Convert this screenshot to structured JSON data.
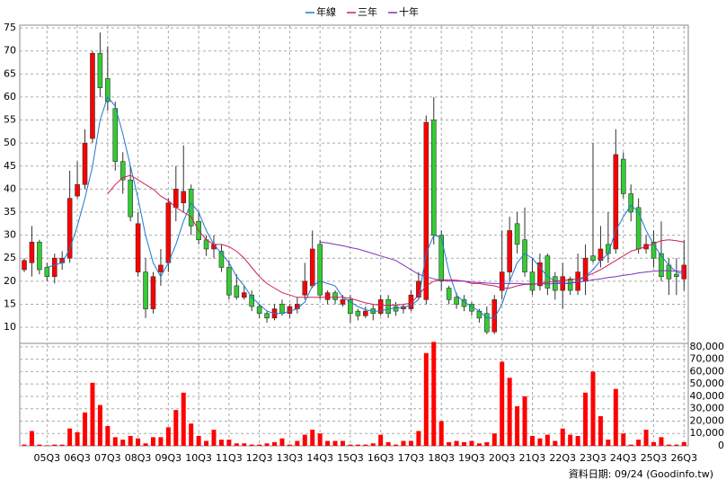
{
  "chart_data": {
    "type": "candlestick",
    "categories": [
      null,
      null,
      null,
      "05Q3",
      null,
      null,
      null,
      "06Q3",
      null,
      null,
      null,
      "07Q3",
      null,
      null,
      null,
      "08Q3",
      null,
      null,
      null,
      "09Q3",
      null,
      null,
      null,
      "10Q3",
      null,
      null,
      null,
      "11Q3",
      null,
      null,
      null,
      "12Q3",
      null,
      null,
      null,
      "13Q3",
      null,
      null,
      null,
      "14Q3",
      null,
      null,
      null,
      "15Q3",
      null,
      null,
      null,
      "16Q3",
      null,
      null,
      null,
      "17Q3",
      null,
      null,
      null,
      "18Q3",
      null,
      null,
      null,
      "19Q3",
      null,
      null,
      null,
      "20Q3",
      null,
      null,
      null,
      "21Q3",
      null,
      null,
      null,
      "22Q3",
      null,
      null,
      null,
      "23Q3",
      null,
      null,
      null,
      "24Q3",
      null,
      null,
      null,
      "25Q3",
      null,
      null,
      null,
      "26Q3"
    ],
    "open": [
      22.5,
      24,
      28.5,
      23,
      21,
      24,
      25,
      38.5,
      41,
      51,
      69.5,
      64,
      57.5,
      46,
      42,
      22,
      22,
      14,
      22,
      24,
      36,
      37,
      40,
      33,
      29,
      27,
      26.5,
      23,
      19,
      16.5,
      17,
      14.5,
      13,
      12,
      15,
      13,
      14,
      17,
      19,
      28,
      16,
      17.5,
      15,
      16,
      13.5,
      12.5,
      14,
      13,
      16,
      14.5,
      14,
      14,
      16.5,
      16,
      55,
      30,
      18.5,
      16.5,
      16,
      15,
      13.5,
      13,
      9,
      18,
      22,
      32.5,
      29,
      22,
      19,
      25.5,
      21,
      18,
      20.5,
      18,
      20,
      25.5,
      24.5,
      28,
      27,
      46.5,
      39,
      36,
      27,
      28.5,
      26,
      23.5,
      21.5,
      20.5
    ],
    "high": [
      25,
      32,
      29,
      24,
      26,
      26.5,
      44,
      46,
      53,
      70,
      74,
      71,
      59,
      48,
      45,
      35,
      25,
      22,
      27,
      38,
      45,
      49.5,
      41,
      35,
      30,
      30,
      28,
      24.5,
      21.5,
      19,
      18,
      15,
      13.5,
      15,
      16,
      15,
      16.5,
      24,
      31,
      29,
      18,
      18,
      17,
      17,
      14,
      14.5,
      15,
      17,
      17,
      15.5,
      15,
      18,
      22,
      56,
      60,
      31,
      19,
      17.5,
      17,
      15.5,
      14,
      14.5,
      17,
      31,
      34,
      35,
      36,
      25,
      26,
      26,
      22,
      24,
      21,
      26,
      28,
      50,
      32,
      35,
      53,
      48,
      41,
      38,
      30,
      31,
      33,
      25,
      25,
      29
    ],
    "low": [
      22,
      21,
      21.5,
      20,
      19.5,
      22.5,
      24,
      38,
      40,
      50,
      60,
      57,
      44,
      39,
      33,
      21,
      12,
      13,
      19,
      22,
      33,
      35,
      30,
      28,
      25.5,
      25,
      22,
      16,
      16,
      16,
      13.5,
      12,
      11,
      11.5,
      12.5,
      12,
      13,
      16,
      18.5,
      16,
      15,
      15,
      14.5,
      11,
      11.5,
      12,
      11.5,
      12.5,
      12,
      12.5,
      13,
      13.5,
      16,
      15,
      28,
      18,
      15,
      14,
      13.5,
      12.5,
      11,
      8.5,
      8.5,
      16,
      20,
      26,
      21,
      17,
      18,
      17,
      16,
      14,
      17,
      17,
      17,
      24,
      23,
      24,
      26,
      38,
      33,
      26,
      26,
      23,
      20,
      17,
      17,
      18
    ],
    "close": [
      24.5,
      28.5,
      22.5,
      21,
      25,
      25,
      38,
      41,
      50,
      69.5,
      62,
      59,
      46,
      42,
      34,
      32.5,
      14,
      21,
      23.5,
      37,
      40,
      39.5,
      32,
      29,
      27,
      28,
      23,
      17,
      16.5,
      17.5,
      14.5,
      13,
      12,
      14,
      13,
      14.5,
      15,
      20,
      27,
      17,
      17.5,
      16,
      16,
      13,
      12.5,
      13.5,
      13,
      16,
      13,
      13.5,
      14.5,
      17,
      20,
      54.5,
      30,
      20,
      16,
      15,
      14.5,
      13.5,
      12,
      9,
      16,
      22,
      31,
      28,
      22,
      18,
      24,
      18.5,
      18,
      21,
      18,
      22,
      25,
      24.5,
      27,
      26,
      47.5,
      39,
      35,
      27,
      28,
      25,
      21,
      20.5,
      21,
      23.5
    ],
    "volume": [
      1000,
      12000,
      1000,
      500,
      1000,
      1000,
      14000,
      11000,
      27000,
      51000,
      33000,
      16000,
      7000,
      5000,
      8000,
      6000,
      2000,
      7000,
      7000,
      15000,
      29000,
      43000,
      18000,
      8000,
      4000,
      13000,
      5000,
      5000,
      2000,
      2000,
      1000,
      1000,
      2000,
      3000,
      6000,
      1000,
      4000,
      9000,
      13000,
      10000,
      4000,
      4000,
      4000,
      1000,
      1000,
      1000,
      2000,
      9000,
      3000,
      1000,
      4000,
      4000,
      12000,
      75000,
      84000,
      20000,
      3000,
      4000,
      3000,
      4000,
      2000,
      3000,
      10000,
      68000,
      55000,
      32000,
      40000,
      8000,
      6000,
      9000,
      4000,
      14000,
      9000,
      8000,
      43000,
      60000,
      24000,
      5000,
      46000,
      10000,
      1000,
      5000,
      13000,
      3000,
      7000,
      1000,
      1000,
      3000
    ],
    "up_color": "#ff0000",
    "down_color": "#33cc33",
    "volume_color": "#ff0000",
    "series": [
      {
        "name": "年線",
        "color": "#1e78d2",
        "values": [
          null,
          null,
          null,
          23,
          23.5,
          24,
          27,
          32,
          38,
          45,
          55,
          60,
          58,
          52,
          45,
          38,
          30,
          24,
          21,
          24,
          28,
          33,
          37,
          35,
          31,
          28,
          26,
          24,
          21,
          19,
          16.5,
          15,
          13.5,
          13,
          13,
          13.5,
          14,
          15.5,
          19,
          20,
          19.5,
          19,
          16.5,
          15.5,
          14.5,
          13.8,
          13.5,
          13.5,
          14,
          14.2,
          14.3,
          14.8,
          16,
          26,
          30,
          29.5,
          22,
          17,
          15.5,
          14.5,
          13.5,
          12,
          12,
          15,
          20,
          24,
          26,
          25,
          23,
          21,
          20,
          19.5,
          19.5,
          20,
          21,
          22.5,
          24.5,
          26,
          31,
          34,
          36.5,
          35,
          31,
          28,
          25.5,
          23.5,
          22,
          21.5
        ]
      },
      {
        "name": "三年",
        "color": "#d0205a",
        "values": [
          null,
          null,
          null,
          null,
          null,
          null,
          null,
          null,
          null,
          null,
          null,
          39,
          41,
          42.5,
          43,
          42,
          41,
          40,
          38.5,
          37.5,
          36,
          35,
          34,
          31,
          29,
          28,
          28,
          27.5,
          26.5,
          25,
          23,
          21,
          19.5,
          18.5,
          17.5,
          17,
          16.5,
          16.5,
          16.5,
          16.5,
          16.5,
          16.5,
          16.5,
          16.3,
          15.8,
          15.3,
          15,
          14.8,
          14.8,
          14.8,
          15,
          15.2,
          17,
          19,
          20,
          20.3,
          20.3,
          20.2,
          20,
          19.5,
          19.5,
          19.2,
          19,
          18.5,
          18.5,
          19,
          19.3,
          19.3,
          19.5,
          19.8,
          20,
          20.2,
          20.3,
          20.5,
          21,
          21.7,
          22.5,
          23.5,
          24.5,
          25.5,
          26.5,
          27,
          27.5,
          28.2,
          28.8,
          29,
          28.8,
          28.5
        ]
      },
      {
        "name": "十年",
        "color": "#8030c0",
        "values": [
          null,
          null,
          null,
          null,
          null,
          null,
          null,
          null,
          null,
          null,
          null,
          null,
          null,
          null,
          null,
          null,
          null,
          null,
          null,
          null,
          null,
          null,
          null,
          null,
          null,
          null,
          null,
          null,
          null,
          null,
          null,
          null,
          null,
          null,
          null,
          null,
          null,
          null,
          null,
          28.5,
          28.3,
          28,
          27.7,
          27.3,
          27,
          26.5,
          26,
          25.5,
          25,
          24.5,
          23.5,
          22.5,
          21.5,
          21,
          20.5,
          20.2,
          20,
          20,
          20,
          19.8,
          19.7,
          19.6,
          19.5,
          19.5,
          19.5,
          19.5,
          19.4,
          19.4,
          19.4,
          19.4,
          19.5,
          19.5,
          19.6,
          19.8,
          20,
          20.3,
          20.5,
          20.8,
          21,
          21.3,
          21.5,
          21.8,
          22,
          22.2,
          22.3,
          22.3,
          22.2,
          22.1
        ]
      }
    ],
    "ylim": [
      6.5,
      75.6
    ],
    "yticks": [
      10,
      15,
      20,
      25,
      30,
      35,
      40,
      45,
      50,
      55,
      60,
      65,
      70,
      75
    ],
    "volume_ylim": [
      0,
      85000
    ],
    "volume_yticks": [
      {
        "value": 0,
        "label": "0"
      },
      {
        "value": 10000,
        "label": "10,000"
      },
      {
        "value": 20000,
        "label": "20,000"
      },
      {
        "value": 30000,
        "label": "30,000"
      },
      {
        "value": 40000,
        "label": "40,000"
      },
      {
        "value": 50000,
        "label": "50,000"
      },
      {
        "value": 60000,
        "label": "60,000"
      },
      {
        "value": 70000,
        "label": "70,000"
      },
      {
        "value": 80000,
        "label": "80,000"
      }
    ],
    "grid": true,
    "source": "資料日期: 09/24 (Goodinfo.tw)"
  }
}
